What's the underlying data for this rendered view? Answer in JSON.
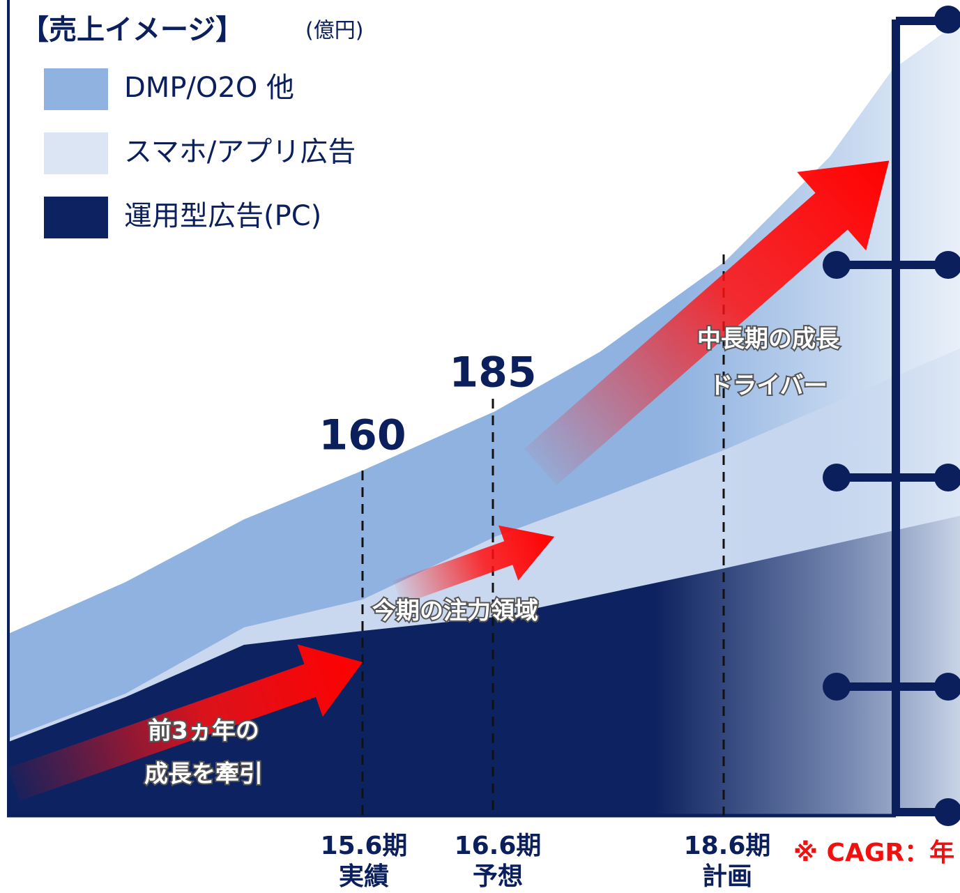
{
  "header": {
    "title": "【売上イメージ】",
    "unit": "(億円)"
  },
  "legend": [
    "DMP/O2O 他",
    "スマホ/アプリ広告",
    "運用型広告(PC)"
  ],
  "value_labels": [
    160,
    185
  ],
  "annotations": [
    [
      "前3ヵ年の",
      "成長を牽引"
    ],
    [
      "今期の注力領域"
    ],
    [
      "中長期の成長",
      "ドライバー"
    ]
  ],
  "periods": [
    [
      "15.6期",
      "実績"
    ],
    [
      "16.6期",
      "予想"
    ],
    [
      "18.6期",
      "計画"
    ]
  ],
  "footnote": "※ CAGR：年"
}
